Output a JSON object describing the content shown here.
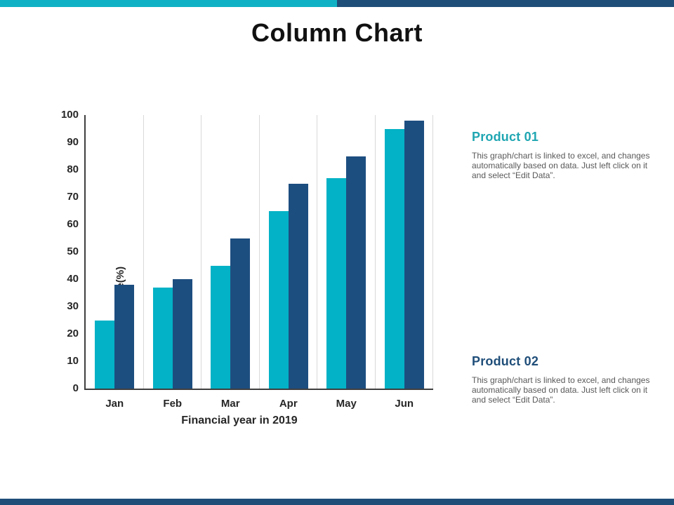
{
  "slide": {
    "title": "Column Chart",
    "topbar_teal_color": "#10b1c4",
    "topbar_blue_color": "#1f4e79",
    "bottombar_color": "#1f4e79"
  },
  "chart_data": {
    "type": "bar",
    "categories": [
      "Jan",
      "Feb",
      "Mar",
      "Apr",
      "May",
      "Jun"
    ],
    "series": [
      {
        "name": "Product 01",
        "color": "#03b2c6",
        "values": [
          25,
          37,
          45,
          65,
          77,
          95
        ]
      },
      {
        "name": "Product 02",
        "color": "#1d4e80",
        "values": [
          38,
          40,
          55,
          75,
          85,
          98
        ]
      }
    ],
    "title": "",
    "xlabel": "Financial year in 2019",
    "ylabel": "Sales in percentage(%)",
    "ylim": [
      0,
      100
    ],
    "ytick_step": 10,
    "grid": "vertical category separators, light gray",
    "legend": "none"
  },
  "panels": [
    {
      "heading": "Product 01",
      "heading_color": "#1fa6b2",
      "body": "This graph/chart is linked to excel, and changes\nautomatically based on data. Just left click on it\nand select “Edit Data”."
    },
    {
      "heading": "Product 02",
      "heading_color": "#1f4e79",
      "body": "This graph/chart is linked to excel, and changes\nautomatically based on data. Just left click on it\nand select “Edit Data”."
    }
  ]
}
